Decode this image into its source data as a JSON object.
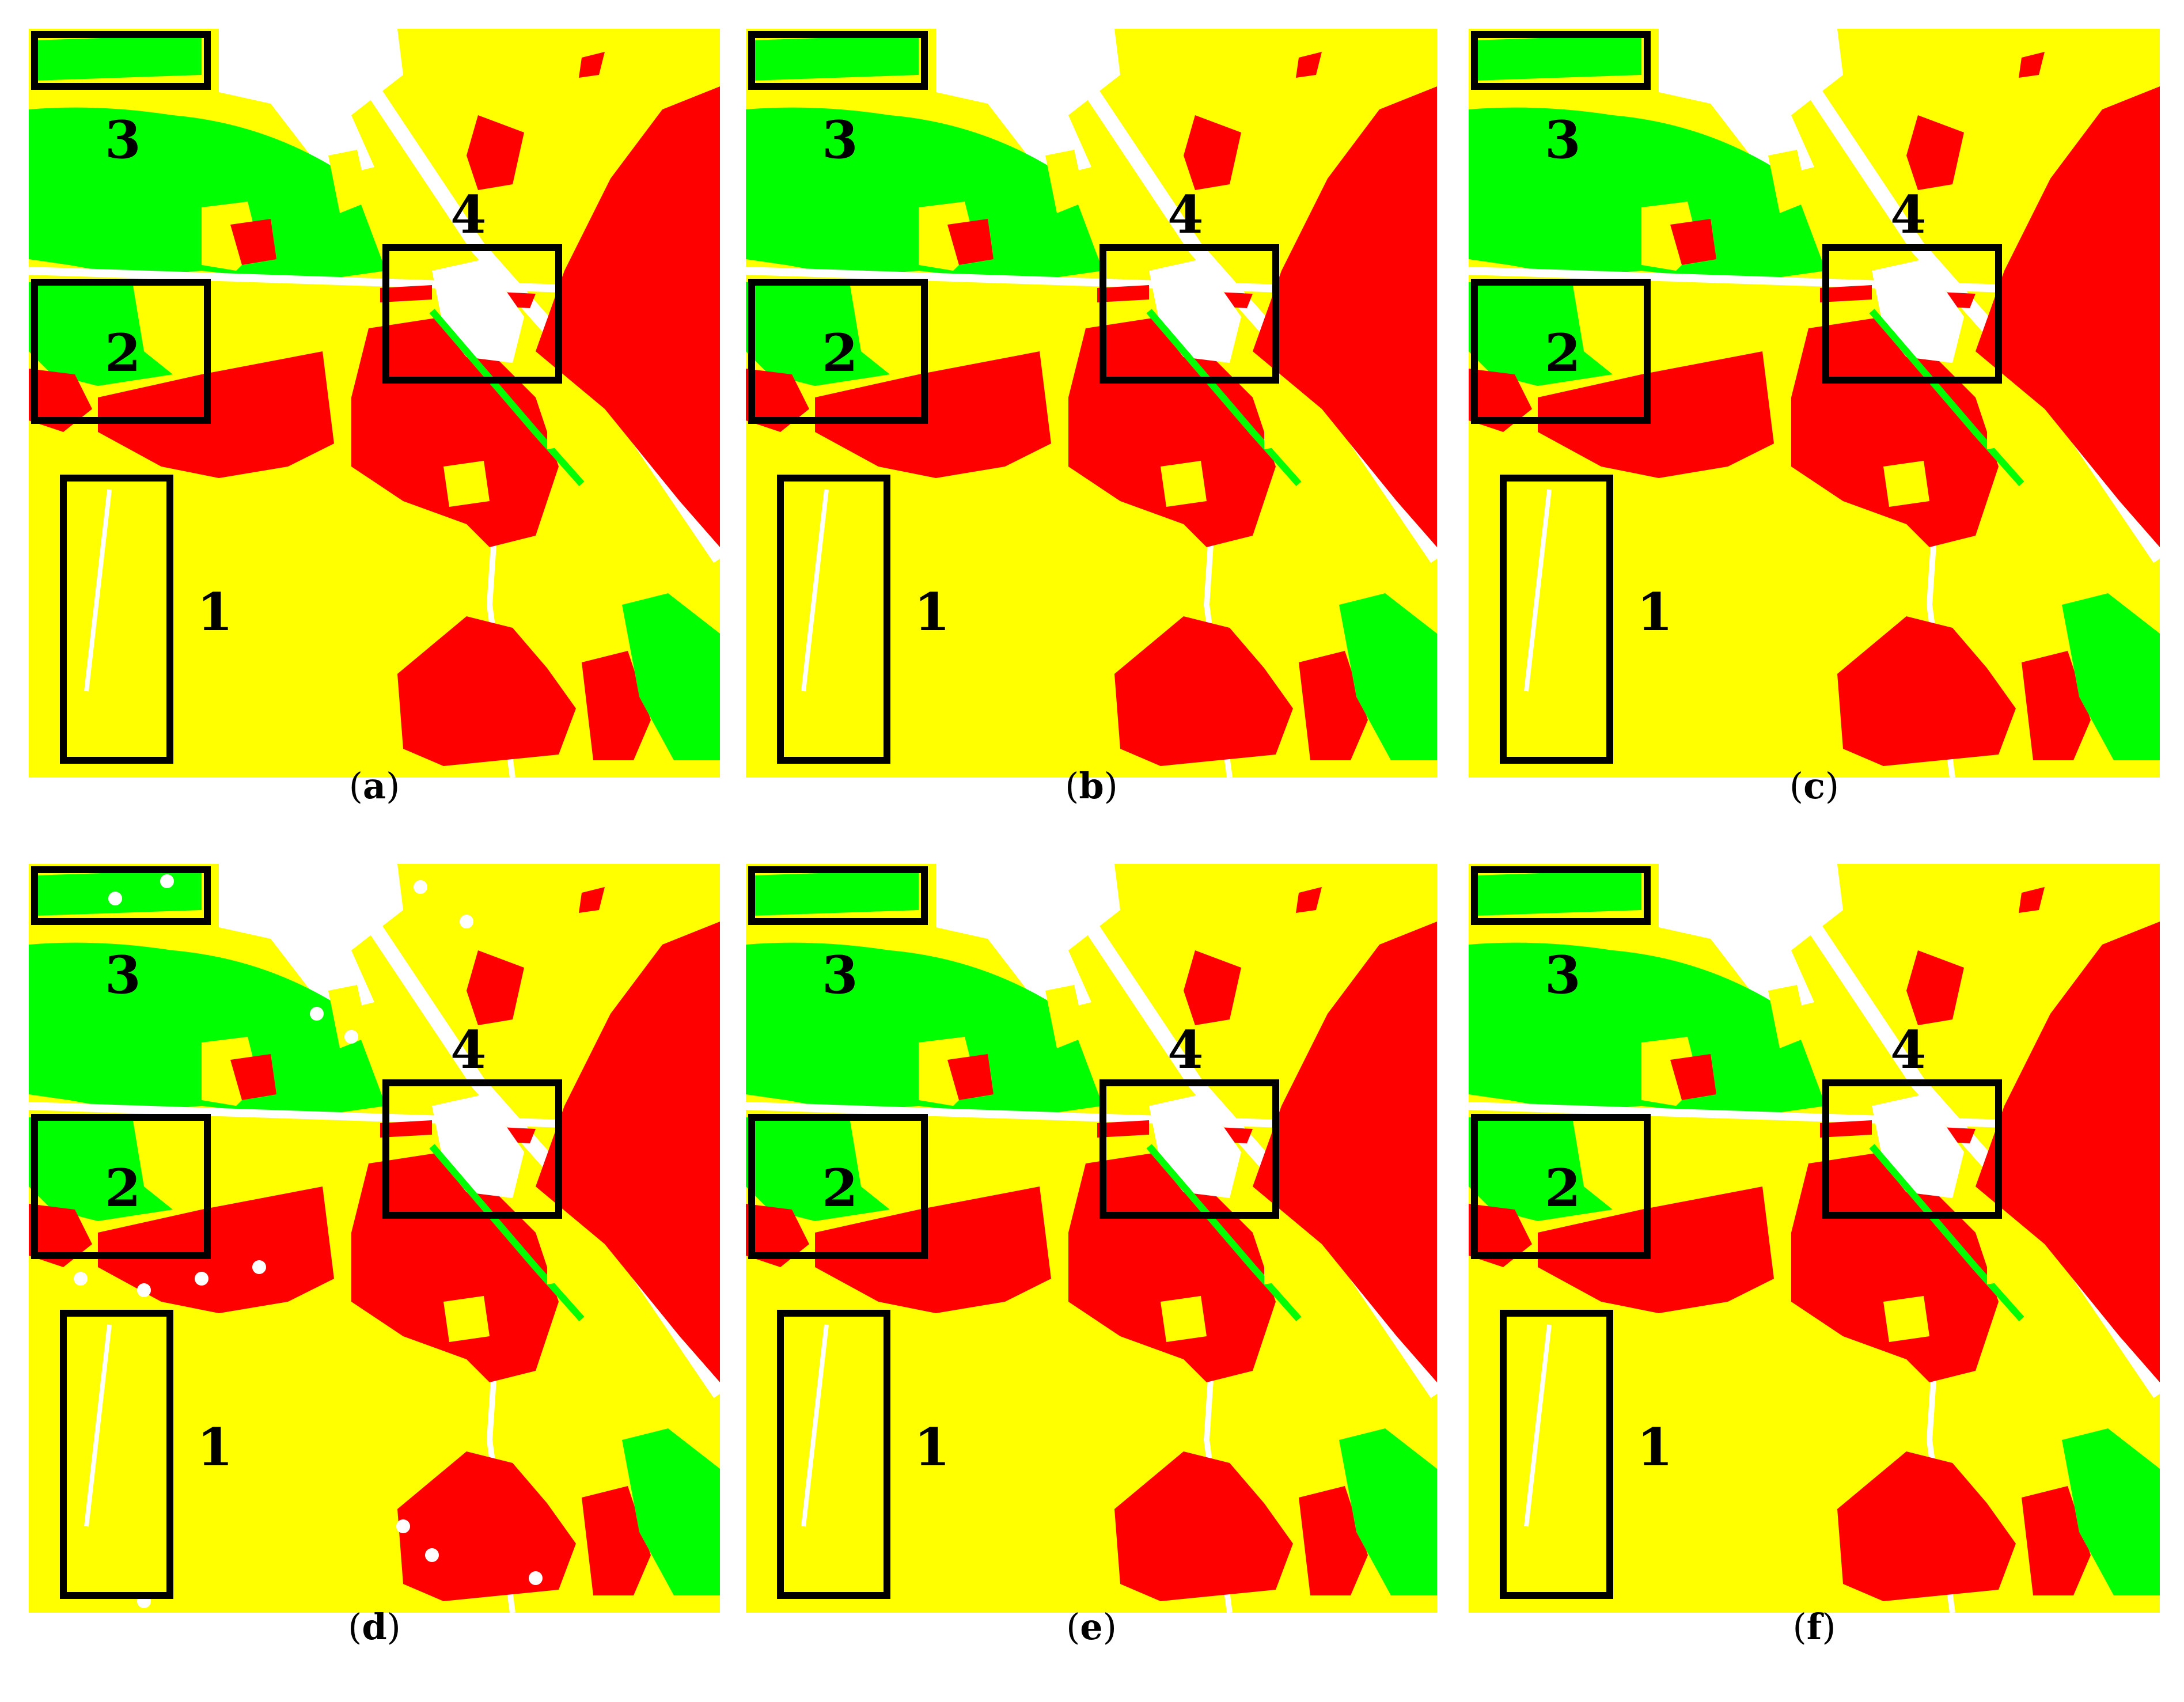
{
  "colors": {
    "yellow": "#ffff00",
    "red": "#ff0000",
    "green": "#00ff00",
    "white": "#ffffff",
    "box": "#000000"
  },
  "region_labels": [
    "1",
    "2",
    "3",
    "4"
  ],
  "panels": [
    {
      "letter": "a",
      "open": "(",
      "close": ")"
    },
    {
      "letter": "b",
      "open": "(",
      "close": ")"
    },
    {
      "letter": "c",
      "open": "(",
      "close": ")"
    },
    {
      "letter": "d",
      "open": "(",
      "close": ")"
    },
    {
      "letter": "e",
      "open": "(",
      "close": ")"
    },
    {
      "letter": "f",
      "open": "(",
      "close": ")"
    }
  ]
}
